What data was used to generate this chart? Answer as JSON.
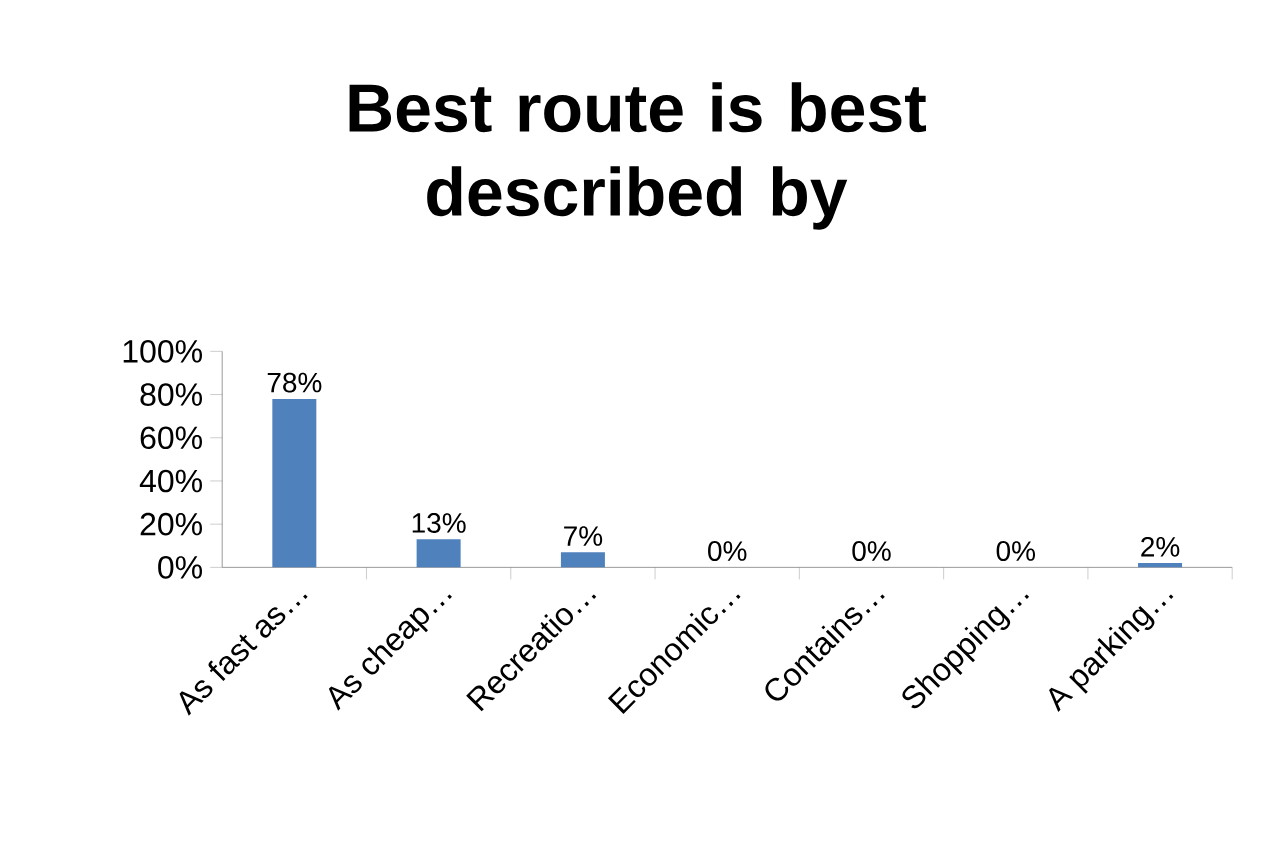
{
  "chart_data": {
    "type": "bar",
    "title": "Best route is best described by",
    "categories": [
      "As fast as…",
      "As cheap…",
      "Recreatio…",
      "Economic…",
      "Contains…",
      "Shopping…",
      "A parking…"
    ],
    "values": [
      78,
      13,
      7,
      0,
      0,
      0,
      2
    ],
    "value_labels": [
      "78%",
      "13%",
      "7%",
      "0%",
      "0%",
      "0%",
      "2%"
    ],
    "color": "#4f81bd",
    "ylim": [
      0,
      100
    ],
    "yticks": [
      {
        "value": 0,
        "label": "0%"
      },
      {
        "value": 20,
        "label": "20%"
      },
      {
        "value": 40,
        "label": "40%"
      },
      {
        "value": 60,
        "label": "60%"
      },
      {
        "value": 80,
        "label": "80%"
      },
      {
        "value": 100,
        "label": "100%"
      }
    ],
    "grid": false
  }
}
